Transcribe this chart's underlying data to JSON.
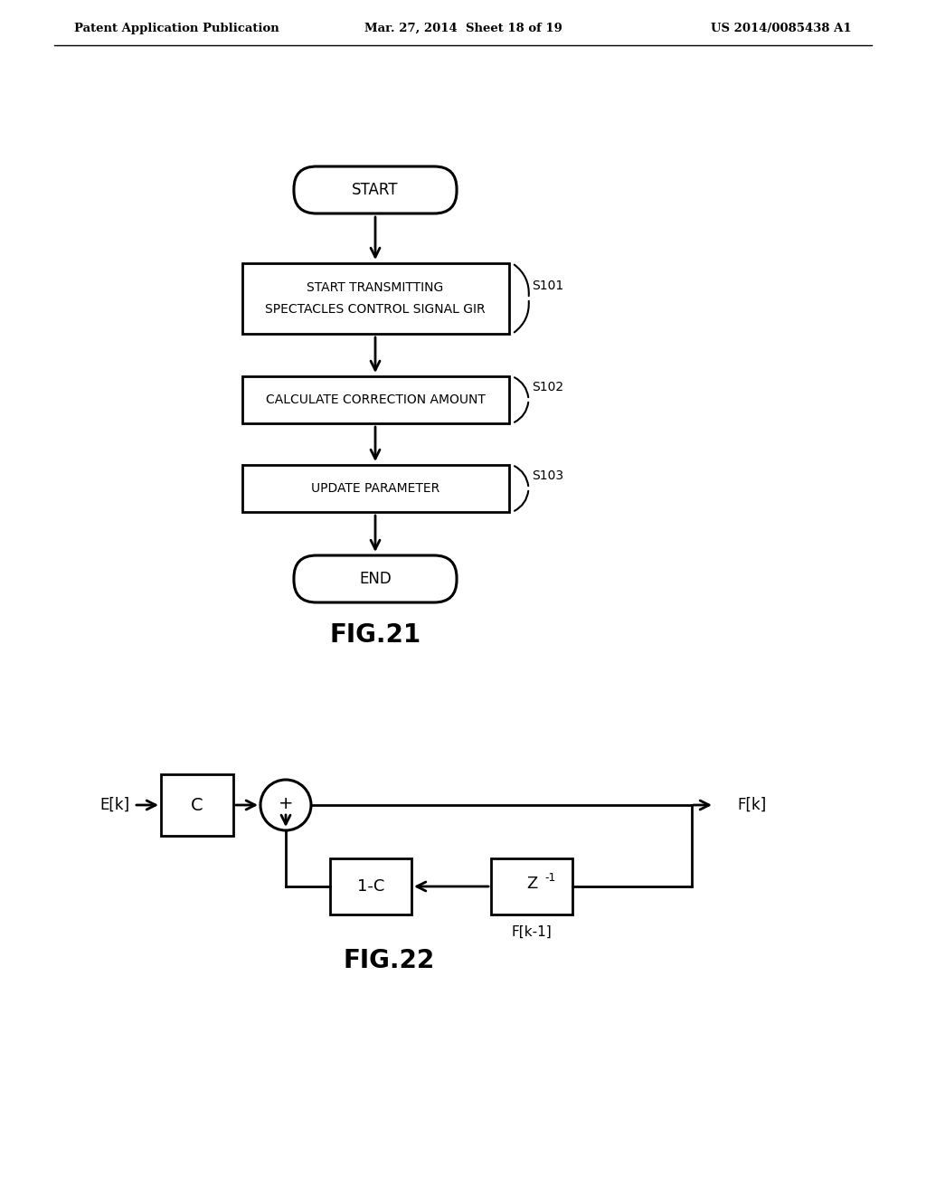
{
  "bg_color": "#ffffff",
  "header_left": "Patent Application Publication",
  "header_mid": "Mar. 27, 2014  Sheet 18 of 19",
  "header_right": "US 2014/0085438 A1",
  "fig21_title": "FIG.21",
  "fig22_title": "FIG.22",
  "flowchart": {
    "start_text": "START",
    "box1_line1": "START TRANSMITTING",
    "box1_line2": "SPECTACLES CONTROL SIGNAL GIR",
    "box1_label": "S101",
    "box2_text": "CALCULATE CORRECTION AMOUNT",
    "box2_label": "S102",
    "box3_text": "UPDATE PARAMETER",
    "box3_label": "S103",
    "end_text": "END"
  },
  "block": {
    "ek_text": "E[k]",
    "c_text": "C",
    "plus_text": "+",
    "fk_text": "F[k]",
    "omc_text": "1-C",
    "zinv_text": "Z-1",
    "fk1_text": "F[k-1]"
  }
}
